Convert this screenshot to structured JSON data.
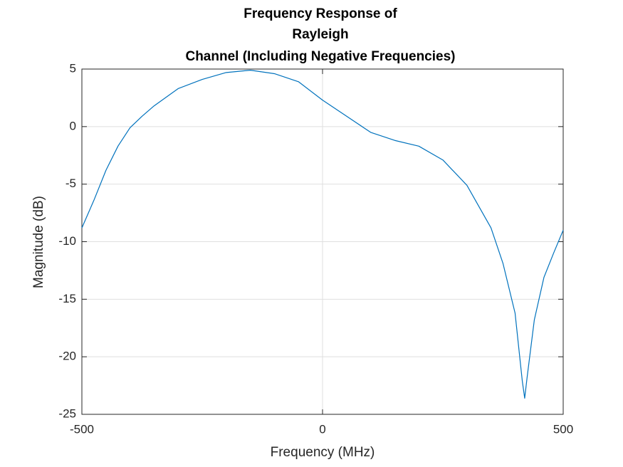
{
  "chart_data": {
    "type": "line",
    "title": [
      "Frequency Response of",
      "Rayleigh",
      "Channel (Including Negative Frequencies)"
    ],
    "xlabel": "Frequency (MHz)",
    "ylabel": "Magnitude (dB)",
    "x": [
      -500,
      -475,
      -450,
      -425,
      -400,
      -375,
      -350,
      -300,
      -250,
      -200,
      -150,
      -100,
      -50,
      0,
      50,
      100,
      150,
      200,
      250,
      300,
      350,
      375,
      400,
      415,
      420,
      425,
      440,
      460,
      480,
      500
    ],
    "series": [
      {
        "name": "Magnitude",
        "color": "#0072bd",
        "values": [
          -8.8,
          -6.4,
          -3.8,
          -1.7,
          -0.1,
          0.9,
          1.8,
          3.3,
          4.1,
          4.7,
          4.9,
          4.6,
          3.9,
          2.3,
          0.9,
          -0.5,
          -1.2,
          -1.7,
          -2.9,
          -5.1,
          -8.8,
          -11.9,
          -16.2,
          -22.1,
          -23.6,
          -21.8,
          -16.8,
          -13.1,
          -11,
          -9.0
        ]
      }
    ],
    "xlim": [
      -500,
      500
    ],
    "xticks": [
      -500,
      0,
      500
    ],
    "ylim": [
      -25,
      5
    ],
    "yticks": [
      -25,
      -20,
      -15,
      -10,
      -5,
      0,
      5
    ],
    "grid": true
  }
}
